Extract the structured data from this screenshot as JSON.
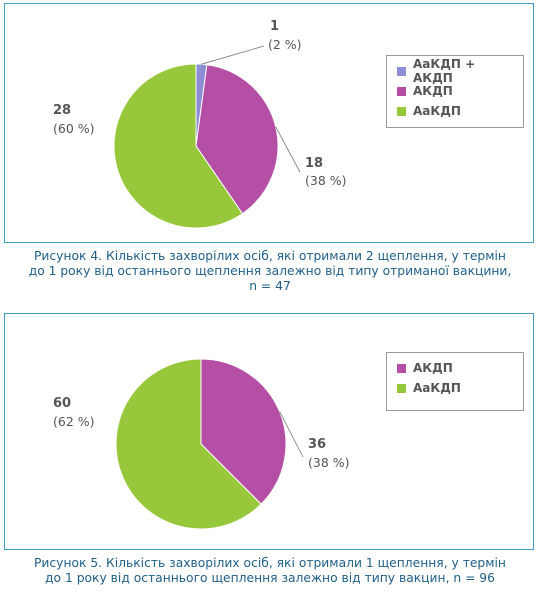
{
  "charts": [
    {
      "type": "pie",
      "series": [
        {
          "name": "АаКДП + АКДП",
          "value": 1,
          "percent_label": "(2 %)",
          "color": "#8e8ed6"
        },
        {
          "name": "АКДП",
          "value": 18,
          "percent_label": "(38 %)",
          "color": "#b54fa5"
        },
        {
          "name": "АаКДП",
          "value": 28,
          "percent_label": "(60 %)",
          "color": "#97c83b"
        }
      ],
      "legend_position": "right",
      "caption_lines": [
        "Рисунок 4.  Кількість захворілих осіб, які отримали 2 щеплення, у термін",
        "до 1 року від останнього щеплення залежно від типу отриманої вакцини,",
        "n = 47"
      ]
    },
    {
      "type": "pie",
      "series": [
        {
          "name": "АКДП",
          "value": 36,
          "percent_label": "(38 %)",
          "color": "#b54fa5"
        },
        {
          "name": "АаКДП",
          "value": 60,
          "percent_label": "(62 %)",
          "color": "#97c83b"
        }
      ],
      "legend_position": "right",
      "caption_lines": [
        "Рисунок 5.  Кількість захворілих осіб, які отримали 1 щеплення, у термін",
        "до 1 року від останнього щеплення залежно від типу вакцин, n = 96"
      ]
    }
  ],
  "chart_data": [
    {
      "type": "pie",
      "labels": [
        "АаКДП + АКДП",
        "АКДП",
        "АаКДП"
      ],
      "values": [
        1,
        18,
        28
      ],
      "percents": [
        2,
        38,
        60
      ]
    },
    {
      "type": "pie",
      "labels": [
        "АКДП",
        "АаКДП"
      ],
      "values": [
        36,
        60
      ],
      "percents": [
        38,
        62
      ]
    }
  ]
}
